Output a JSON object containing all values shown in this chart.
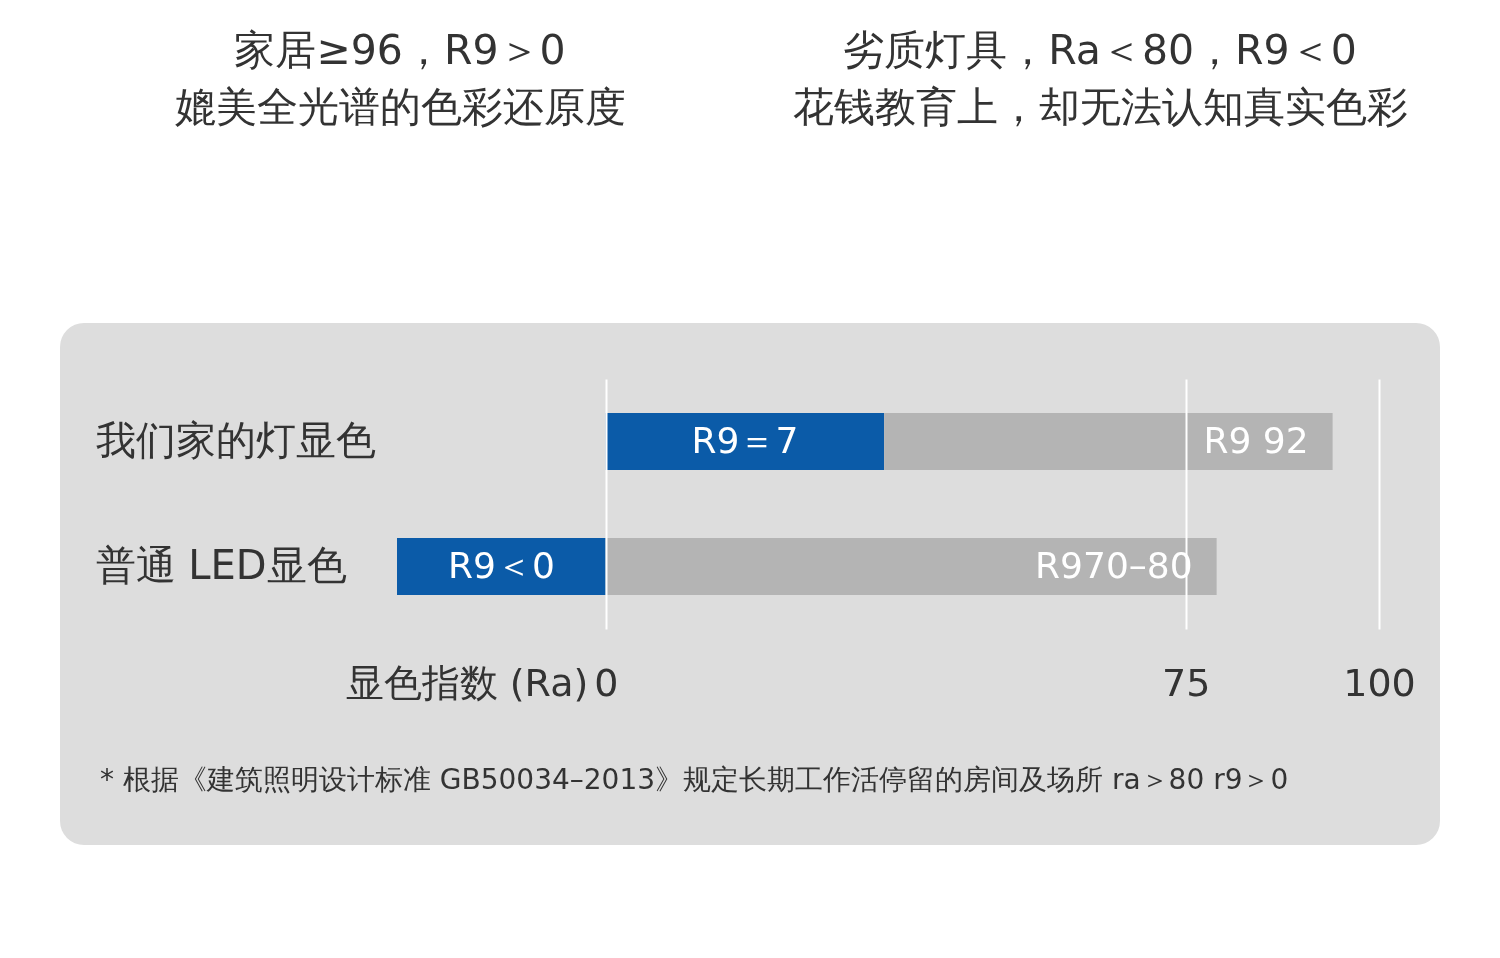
{
  "chart_data": {
    "type": "bar",
    "orientation": "horizontal",
    "stacked": true,
    "categories": [
      "我们家的灯显色",
      "普通 LED显色"
    ],
    "series": [
      {
        "color": "#0b5ba8",
        "values": [
          36,
          -27
        ],
        "value_labels": [
          "R9＝7",
          "R9＜0"
        ]
      },
      {
        "color": "#b4b4b4",
        "values": [
          58,
          79
        ],
        "value_labels": [
          "R9 92",
          "R970–80"
        ]
      }
    ],
    "xlabel": "显色指数 (Ra)",
    "xlim": [
      -27,
      100
    ],
    "xticks": [
      0,
      75,
      100
    ],
    "grid": "x",
    "annotations": [
      "家居≥96，R9＞0\n媲美全光谱的色彩还原度",
      "劣质灯具，Ra＜80，R9＜0\n花钱教育上，却无法认知真实色彩",
      "* 根据《建筑照明设计标准 GB50034–2013》规定长期工作活停留的房间及场所 ra＞80 r9＞0"
    ]
  }
}
